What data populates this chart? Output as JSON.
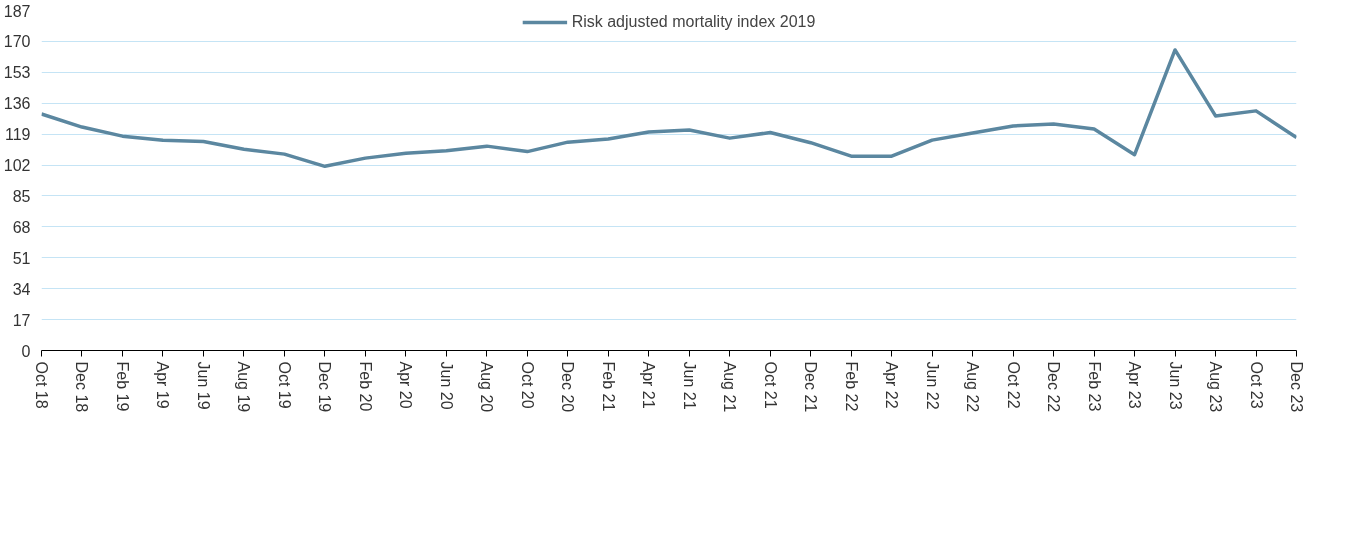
{
  "chart_data": {
    "type": "line",
    "categories": [
      "Oct 18",
      "Dec 18",
      "Feb 19",
      "Apr 19",
      "Jun 19",
      "Aug 19",
      "Oct 19",
      "Dec 19",
      "Feb 20",
      "Apr 20",
      "Jun 20",
      "Aug 20",
      "Oct 20",
      "Dec 20",
      "Feb 21",
      "Apr 21",
      "Jun 21",
      "Aug 21",
      "Oct 21",
      "Dec 21",
      "Feb 22",
      "Apr 22",
      "Jun 22",
      "Aug 22",
      "Oct 22",
      "Dec 22",
      "Feb 23",
      "Apr 23",
      "Jun 23",
      "Aug 23",
      "Oct 23",
      "Dec 23"
    ],
    "series": [
      {
        "name": "Risk adjusted mortality index 2019",
        "color": "#5b87a0",
        "values": [
          130.1,
          122.9,
          117.9,
          115.7,
          114.9,
          110.7,
          108.0,
          101.3,
          105.8,
          108.5,
          109.9,
          112.4,
          109.4,
          114.6,
          116.3,
          120.2,
          121.3,
          116.8,
          119.9,
          114.3,
          106.9,
          106.9,
          115.7,
          119.6,
          123.5,
          124.6,
          121.8,
          107.7,
          165.3,
          129.0,
          131.8,
          117.1
        ]
      }
    ],
    "ylim": [
      0,
      187
    ],
    "yticks": [
      0,
      17,
      34,
      51,
      68,
      85,
      102,
      119,
      136,
      153,
      170,
      187
    ],
    "grid": "y",
    "legend": "top",
    "marker": "none",
    "line_style": "solid"
  }
}
